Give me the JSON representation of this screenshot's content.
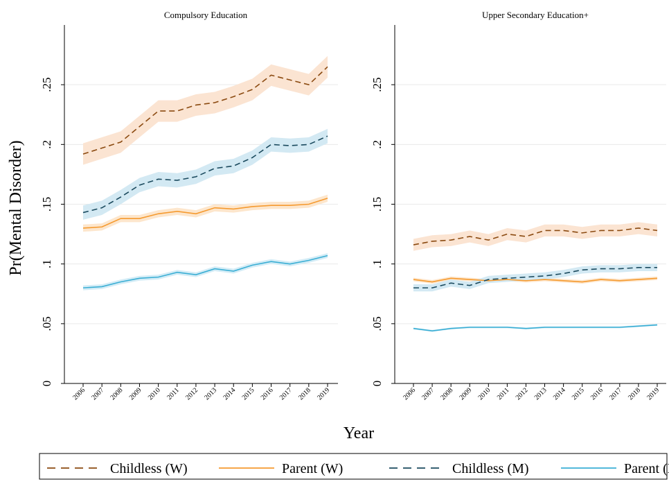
{
  "chart_data": {
    "type": "line",
    "ylabel": "Pr(Mental Disorder)",
    "xlabel": "Year",
    "ylim": [
      0,
      0.3
    ],
    "yticks": [
      0,
      0.05,
      0.1,
      0.15,
      0.2,
      0.25
    ],
    "ytick_labels": [
      "0",
      ".05",
      ".1",
      ".15",
      ".2",
      ".25"
    ],
    "x": [
      "2006",
      "2007",
      "2008",
      "2009",
      "2010",
      "2011",
      "2012",
      "2013",
      "2014",
      "2015",
      "2016",
      "2017",
      "2018",
      "2019"
    ],
    "grid": true,
    "legend_position": "bottom",
    "legend": [
      {
        "name": "Childless (W)",
        "color": "#8b4a10",
        "style": "dashed"
      },
      {
        "name": "Parent (W)",
        "color": "#f59a2f",
        "style": "solid"
      },
      {
        "name": "Childless (M)",
        "color": "#1b4a5e",
        "style": "dashed"
      },
      {
        "name": "Parent (M)",
        "color": "#3aaed4",
        "style": "solid"
      }
    ],
    "panels": [
      {
        "title": "Compulsory Education",
        "series": [
          {
            "name": "Childless (W)",
            "values": [
              0.192,
              0.197,
              0.202,
              0.215,
              0.228,
              0.228,
              0.233,
              0.235,
              0.24,
              0.246,
              0.258,
              0.254,
              0.25,
              0.265
            ],
            "ci": 0.009,
            "band_color": "#fbe4d2"
          },
          {
            "name": "Parent (W)",
            "values": [
              0.13,
              0.131,
              0.138,
              0.138,
              0.142,
              0.144,
              0.142,
              0.147,
              0.146,
              0.148,
              0.149,
              0.149,
              0.15,
              0.155
            ],
            "ci": 0.003,
            "band_color": "#fde6cc"
          },
          {
            "name": "Childless (M)",
            "values": [
              0.143,
              0.147,
              0.156,
              0.166,
              0.171,
              0.17,
              0.173,
              0.18,
              0.182,
              0.189,
              0.2,
              0.199,
              0.2,
              0.207
            ],
            "ci": 0.006,
            "band_color": "#d3e9f3"
          },
          {
            "name": "Parent (M)",
            "values": [
              0.08,
              0.081,
              0.085,
              0.088,
              0.089,
              0.093,
              0.091,
              0.096,
              0.094,
              0.099,
              0.102,
              0.1,
              0.103,
              0.107
            ],
            "ci": 0.002,
            "band_color": "#d3ecf6"
          }
        ]
      },
      {
        "title": "Upper Secondary Education+",
        "series": [
          {
            "name": "Childless (W)",
            "values": [
              0.116,
              0.119,
              0.12,
              0.123,
              0.12,
              0.125,
              0.123,
              0.128,
              0.128,
              0.126,
              0.128,
              0.128,
              0.13,
              0.128
            ],
            "ci": 0.005,
            "band_color": "#fbe4d2"
          },
          {
            "name": "Parent (W)",
            "values": [
              0.087,
              0.085,
              0.088,
              0.087,
              0.086,
              0.087,
              0.086,
              0.087,
              0.086,
              0.085,
              0.087,
              0.086,
              0.087,
              0.088
            ],
            "ci": 0.0015,
            "band_color": "#fde6cc"
          },
          {
            "name": "Childless (M)",
            "values": [
              0.08,
              0.08,
              0.084,
              0.082,
              0.087,
              0.088,
              0.089,
              0.09,
              0.092,
              0.095,
              0.096,
              0.096,
              0.097,
              0.097
            ],
            "ci": 0.003,
            "band_color": "#d3e9f3"
          },
          {
            "name": "Parent (M)",
            "values": [
              0.046,
              0.044,
              0.046,
              0.047,
              0.047,
              0.047,
              0.046,
              0.047,
              0.047,
              0.047,
              0.047,
              0.047,
              0.048,
              0.049
            ],
            "ci": 0.0008,
            "band_color": "#d3ecf6"
          }
        ]
      }
    ]
  }
}
